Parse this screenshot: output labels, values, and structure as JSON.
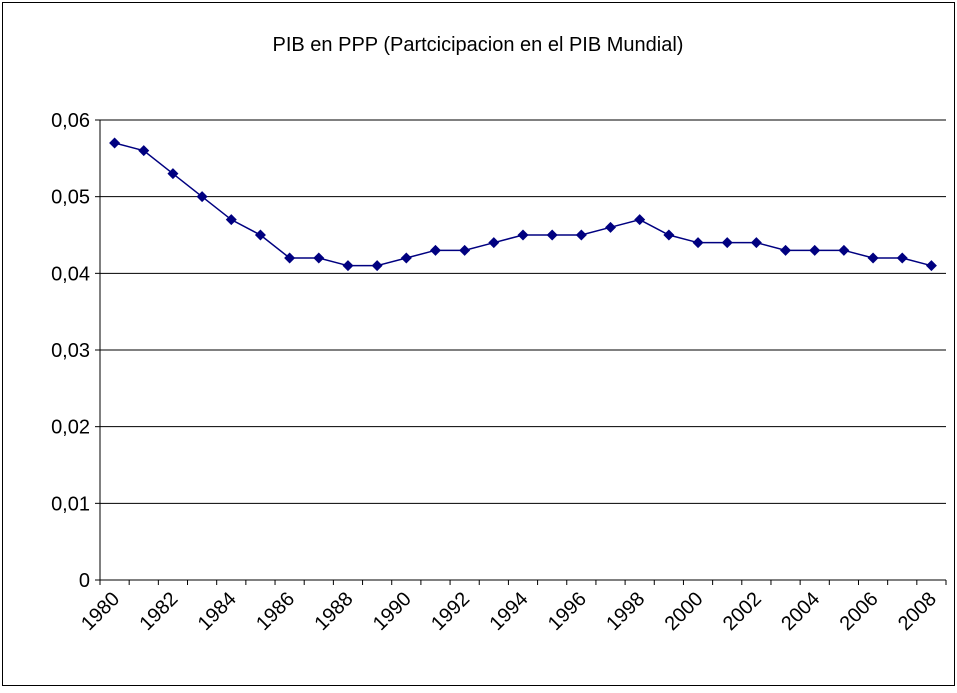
{
  "chart_data": {
    "type": "line",
    "title": "PIB en PPP (Partcicipacion en el PIB Mundial)",
    "categories": [
      "1980",
      null,
      "1982",
      null,
      "1984",
      null,
      "1986",
      null,
      "1988",
      null,
      "1990",
      null,
      "1992",
      null,
      "1994",
      null,
      "1996",
      null,
      "1998",
      null,
      "2000",
      null,
      "2002",
      null,
      "2004",
      null,
      "2006",
      null,
      "2008"
    ],
    "series": [
      {
        "name": "PIB en PPP",
        "color": "#000080",
        "values": [
          0.057,
          0.056,
          0.053,
          0.05,
          0.047,
          0.045,
          0.042,
          0.042,
          0.041,
          0.041,
          0.042,
          0.043,
          0.043,
          0.044,
          0.045,
          0.045,
          0.045,
          0.046,
          0.047,
          0.045,
          0.044,
          0.044,
          0.044,
          0.043,
          0.043,
          0.043,
          0.042,
          0.042,
          0.041
        ]
      }
    ],
    "ylim": [
      0,
      0.06
    ],
    "yticks": [
      0,
      {
        "value": 0.01,
        "label": "0,01"
      },
      {
        "value": 0.02,
        "label": "0,02"
      },
      {
        "value": 0.03,
        "label": "0,03"
      },
      {
        "value": 0.04,
        "label": "0,04"
      },
      {
        "value": 0.05,
        "label": "0,05"
      },
      {
        "value": 0.06,
        "label": "0,06"
      }
    ],
    "grid": true
  }
}
